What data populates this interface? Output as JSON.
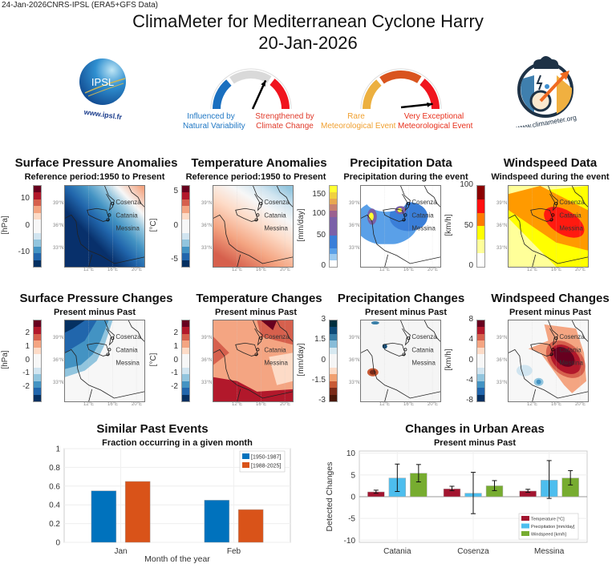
{
  "header": {
    "stamp": "24-Jan-2026CNRS-IPSL (ERA5+GFS Data)",
    "title": "ClimaMeter for Mediterranean Cyclone Harry",
    "date": "20-Jan-2026"
  },
  "logos": {
    "ipsl": {
      "text": "IPSL",
      "url": "www.ipsl.fr"
    },
    "climameter": {
      "url": "www.climameter.org"
    }
  },
  "gauges": [
    {
      "left_label": [
        "Influenced by",
        "Natural Variability"
      ],
      "right_label": [
        "Strengthened by",
        "Climate Change"
      ],
      "left_color": "#1f77c4",
      "right_color": "#d62728",
      "segments": [
        "#1a6fbf",
        "#d9d9d9",
        "#f0141e"
      ],
      "needle_value": 0.65
    },
    {
      "left_label": [
        "Rare",
        "Meteorological Event"
      ],
      "right_label": [
        "Very Exceptional",
        "Meteorological Event"
      ],
      "left_color": "#f0a030",
      "right_color": "#e8301c",
      "segments": [
        "#ecb040",
        "#d9541e",
        "#f0141e"
      ],
      "needle_value": 0.95
    }
  ],
  "map_labels": {
    "lat": [
      "39°N",
      "36°N",
      "33°N"
    ],
    "lon": [
      "12°E",
      "16°E",
      "20°E"
    ],
    "cities": [
      "Cosenza",
      "Catania",
      "Messina"
    ]
  },
  "maps": [
    {
      "title": "Surface Pressure Anomalies",
      "subtitle": "Reference period:1950 to Present",
      "unit": "[hPa]",
      "ticks": [
        "10",
        "0",
        "-10"
      ],
      "colormap": "RdBu"
    },
    {
      "title": "Temperature Anomalies",
      "subtitle": "Reference period:1950 to Present",
      "unit": "[°C]",
      "ticks": [
        "5",
        "0",
        "-5"
      ],
      "colormap": "RdBu"
    },
    {
      "title": "Precipitation Data",
      "subtitle": "Precipitation during the event",
      "unit": "[mm/day]",
      "ticks": [
        "150",
        "100",
        "50",
        "0"
      ],
      "colormap": "precip"
    },
    {
      "title": "Windspeed Data",
      "subtitle": "Windspeed during the event",
      "unit": "[km/h]",
      "ticks": [
        "100",
        "50",
        "0"
      ],
      "colormap": "wind"
    },
    {
      "title": "Surface Pressure Changes",
      "subtitle": "Present minus Past",
      "unit": "[hPa]",
      "ticks": [
        "2",
        "1",
        "0",
        "-1",
        "-2"
      ],
      "colormap": "RdBu"
    },
    {
      "title": "Temperature Changes",
      "subtitle": "Present minus Past",
      "unit": "[°C]",
      "ticks": [
        "2",
        "1",
        "0",
        "-1",
        "-2"
      ],
      "colormap": "RdBu"
    },
    {
      "title": "Precipitation Changes",
      "subtitle": "Present minus Past",
      "unit": "[mm/day]",
      "ticks": [
        "3",
        "1.5",
        "0",
        "-1.5",
        "-3"
      ],
      "colormap": "BrBG"
    },
    {
      "title": "Windspeed Changes",
      "subtitle": "Present minus Past",
      "unit": "[km/h]",
      "ticks": [
        "8",
        "4",
        "0",
        "-4",
        "-8"
      ],
      "colormap": "RdBu"
    }
  ],
  "chart_data": [
    {
      "type": "bar",
      "title": "Similar Past Events",
      "subtitle": "Fraction occurring in a given month",
      "xlabel": "Month of the year",
      "ylabel": "",
      "categories": [
        "Jan",
        "Feb"
      ],
      "series": [
        {
          "name": "[1950-1987]",
          "values": [
            0.55,
            0.45
          ],
          "color": "#0072bd"
        },
        {
          "name": "[1988-2025]",
          "values": [
            0.65,
            0.35
          ],
          "color": "#d95319"
        }
      ],
      "ylim": [
        0,
        1
      ],
      "yticks": [
        "0",
        "0.2",
        "0.4",
        "0.6",
        "0.8",
        "1"
      ],
      "grid": true,
      "legend": "top-right"
    },
    {
      "type": "bar",
      "title": "Changes in Urban Areas",
      "subtitle": "Present minus Past",
      "xlabel": "",
      "ylabel": "Detected Changes",
      "categories": [
        "Catania",
        "Cosenza",
        "Messina"
      ],
      "series": [
        {
          "name": "Temperature [°C]",
          "values": [
            1.1,
            1.8,
            1.3
          ],
          "err_low": [
            0.8,
            1.4,
            1.0
          ],
          "err_high": [
            1.5,
            2.4,
            1.7
          ],
          "color": "#a2142f"
        },
        {
          "name": "Precipitation [mm/day]",
          "values": [
            4.3,
            0.8,
            3.8
          ],
          "err_low": [
            1.2,
            -3.9,
            -0.4
          ],
          "err_high": [
            7.5,
            5.6,
            8.3
          ],
          "color": "#4dbeee"
        },
        {
          "name": "Windspeed [km/h]",
          "values": [
            5.4,
            2.5,
            4.3
          ],
          "err_low": [
            3.4,
            1.4,
            2.7
          ],
          "err_high": [
            7.4,
            3.7,
            6.0
          ],
          "color": "#77ac30"
        }
      ],
      "ylim": [
        -10.5,
        10.5
      ],
      "yticks": [
        "-10",
        "-5",
        "0",
        "5",
        "10"
      ],
      "grid": true,
      "legend": "bottom-right"
    }
  ]
}
